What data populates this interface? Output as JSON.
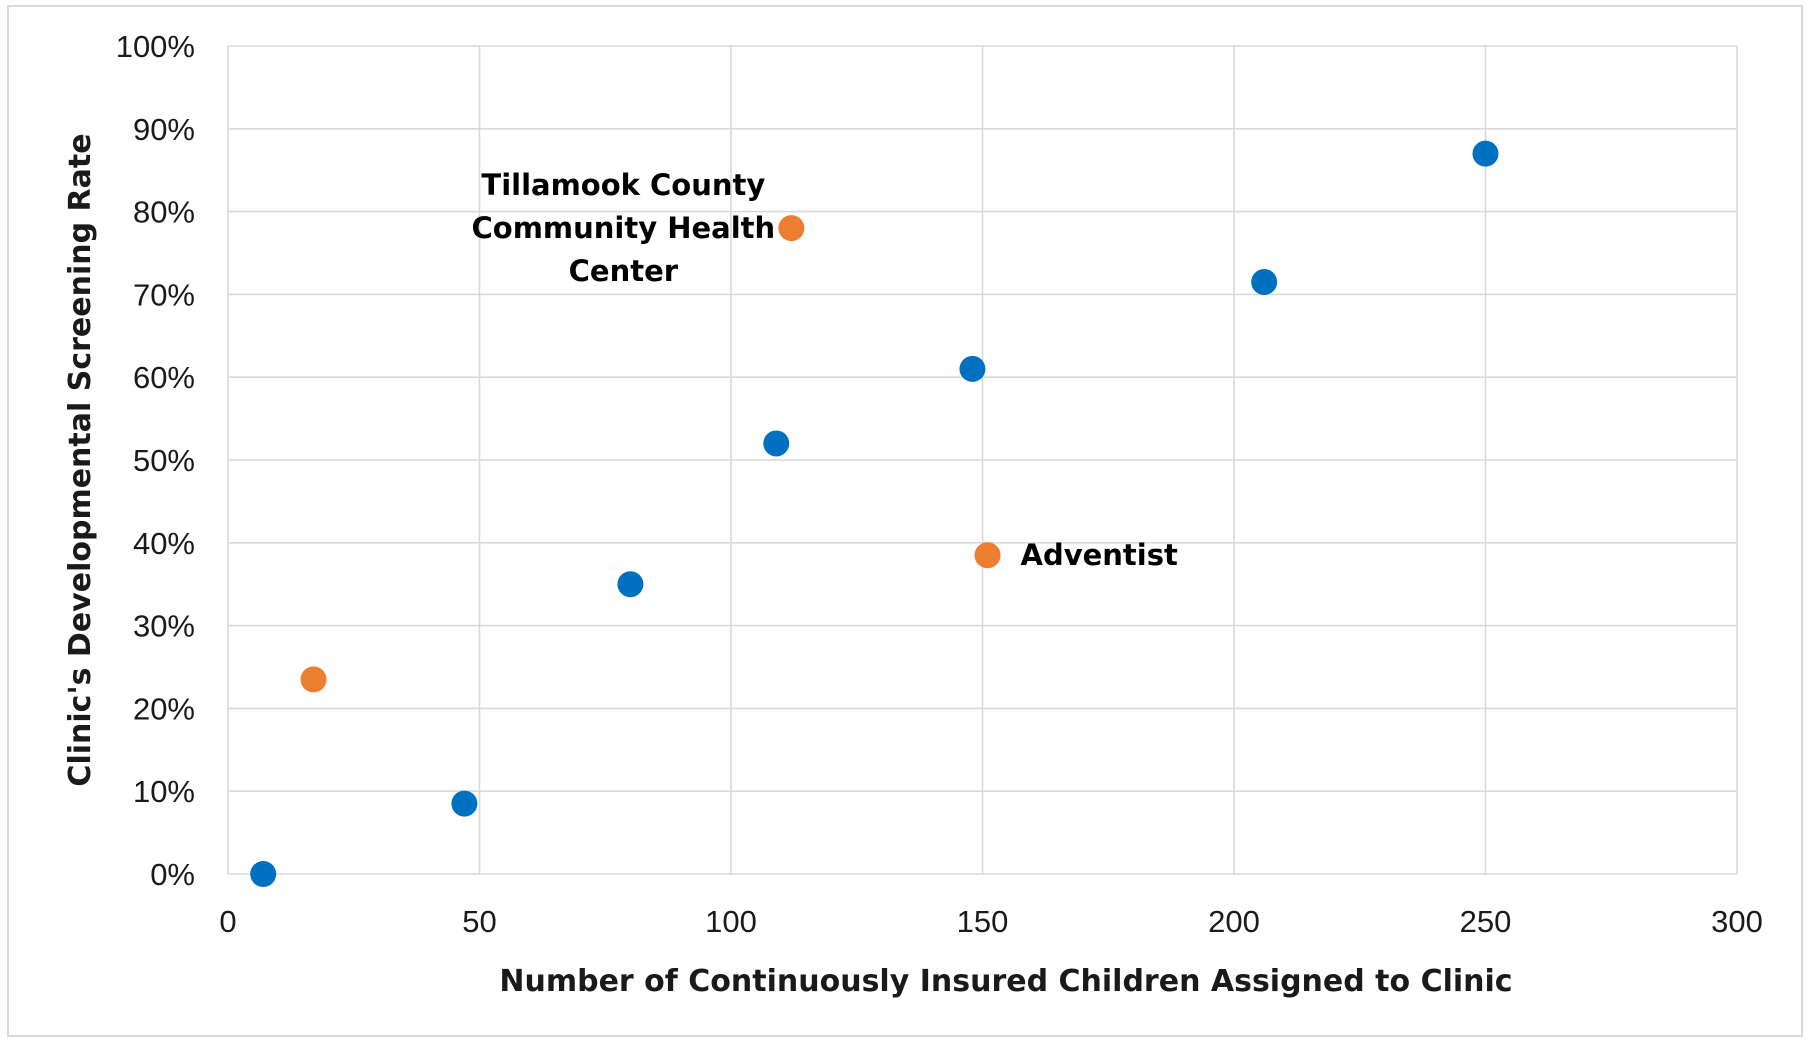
{
  "chart_data": {
    "type": "scatter",
    "title": "",
    "xlabel": "Number of Continuously Insured Children Assigned to Clinic",
    "ylabel": "Clinic's Developmental Screening Rate",
    "xlim": [
      0,
      300
    ],
    "ylim": [
      0,
      100
    ],
    "x_ticks": [
      0,
      50,
      100,
      150,
      200,
      250,
      300
    ],
    "y_ticks": [
      0,
      10,
      20,
      30,
      40,
      50,
      60,
      70,
      80,
      90,
      100
    ],
    "y_tick_labels": [
      "0%",
      "10%",
      "20%",
      "30%",
      "40%",
      "50%",
      "60%",
      "70%",
      "80%",
      "90%",
      "100%"
    ],
    "grid": true,
    "legend": "none",
    "series": [
      {
        "color": "#0070c0",
        "points": [
          {
            "x": 7,
            "y": 0
          },
          {
            "x": 47,
            "y": 8.5
          },
          {
            "x": 80,
            "y": 35
          },
          {
            "x": 109,
            "y": 52
          },
          {
            "x": 148,
            "y": 61
          },
          {
            "x": 206,
            "y": 71.5
          },
          {
            "x": 250,
            "y": 87
          }
        ]
      },
      {
        "color": "#ed7d31",
        "points": [
          {
            "x": 17,
            "y": 23.5
          },
          {
            "x": 112,
            "y": 78
          },
          {
            "x": 151,
            "y": 38.5
          }
        ]
      }
    ],
    "annotations": [
      {
        "lines": [
          "Tillamook County",
          "Community Health",
          "Center"
        ],
        "x": 112,
        "y": 78
      },
      {
        "lines": [
          "Adventist"
        ],
        "x": 151,
        "y": 38.5
      }
    ]
  }
}
